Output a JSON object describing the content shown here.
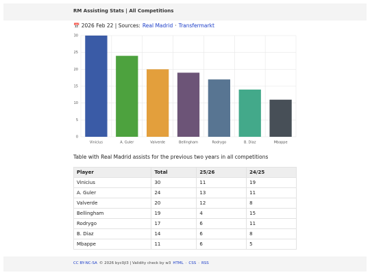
{
  "header": {
    "title": "RM Assisting Stats | All Competitions"
  },
  "meta": {
    "segments": [
      {
        "text": "📅 2026 Feb 22 | Sources:",
        "link": false
      },
      {
        "text": "Real Madrid",
        "link": true
      },
      {
        "text": "·",
        "link": false
      },
      {
        "text": "Transfermarkt",
        "link": true
      }
    ]
  },
  "chart_data": {
    "type": "bar",
    "categories": [
      "Vinicius",
      "A. Guler",
      "Valverde",
      "Bellingham",
      "Rodrygo",
      "B. Diaz",
      "Mbappe"
    ],
    "values": [
      30,
      24,
      20,
      19,
      17,
      14,
      11
    ],
    "colors": [
      "#3a5ba6",
      "#4da23e",
      "#e39f3c",
      "#6c5477",
      "#587592",
      "#43a98a",
      "#474f57"
    ],
    "ylim": [
      0,
      30
    ],
    "yticks": [
      0,
      5,
      10,
      15,
      20,
      25,
      30
    ],
    "grid": true
  },
  "caption": "Table with Real Madrid assists for the previous two years in all competitions",
  "table": {
    "columns": [
      "Player",
      "Total",
      "25/26",
      "24/25"
    ],
    "rows": [
      [
        "Vinicius",
        30,
        11,
        19
      ],
      [
        "A. Guler",
        24,
        13,
        11
      ],
      [
        "Valverde",
        20,
        12,
        8
      ],
      [
        "Bellingham",
        19,
        4,
        15
      ],
      [
        "Rodrygo",
        17,
        6,
        11
      ],
      [
        "B. Diaz",
        14,
        6,
        8
      ],
      [
        "Mbappe",
        11,
        6,
        5
      ]
    ]
  },
  "footer": {
    "segments": [
      {
        "text": "CC BY-NC-SA",
        "link": true
      },
      {
        "text": "© 2026 byc0jl3 | Validity check by w3",
        "link": false
      },
      {
        "text": "HTML",
        "link": true
      },
      {
        "text": "·",
        "link": false
      },
      {
        "text": "CSS",
        "link": true
      },
      {
        "text": "·",
        "link": false
      },
      {
        "text": "RSS",
        "link": true
      }
    ]
  }
}
